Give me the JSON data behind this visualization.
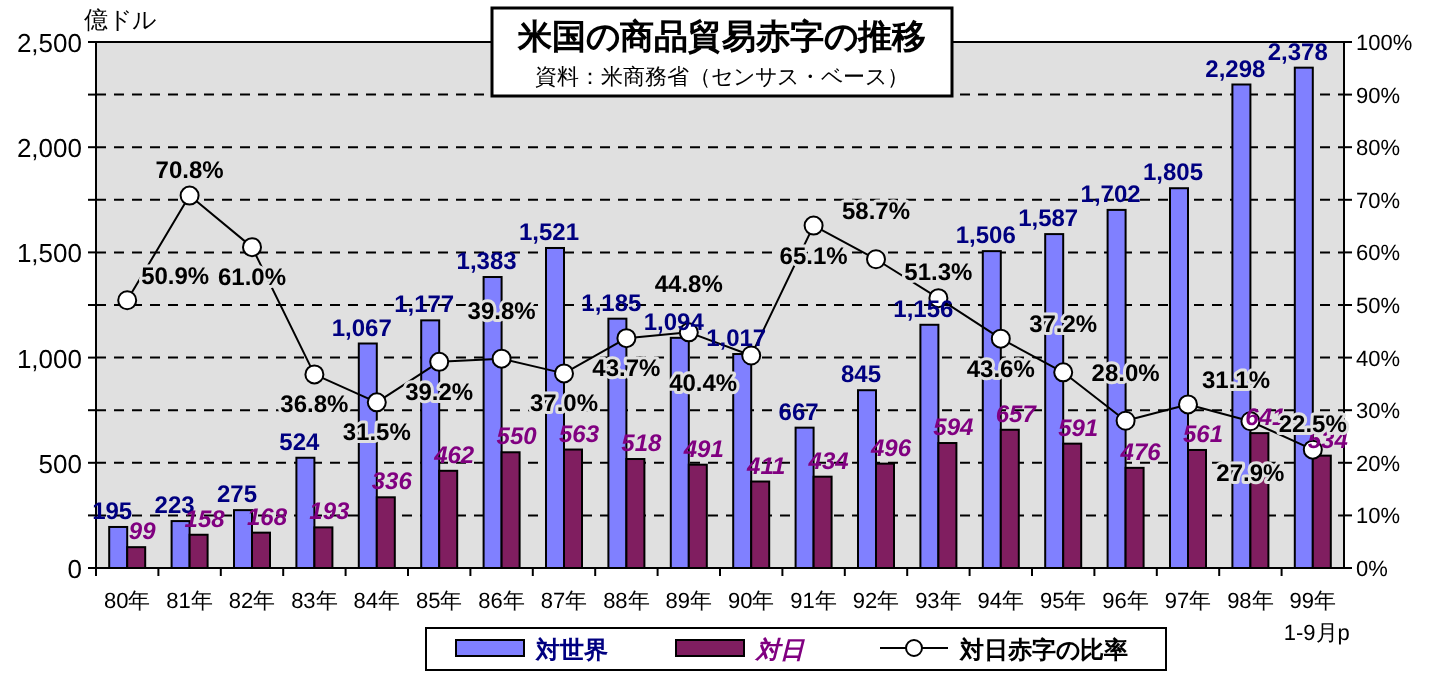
{
  "chart_data": {
    "type": "bar",
    "title": "米国の商品貿易赤字の推移",
    "subtitle": "資料：米商務省（センサス・ベース）",
    "ylabel": "億ドル",
    "categories": [
      "80年",
      "81年",
      "82年",
      "83年",
      "84年",
      "85年",
      "86年",
      "87年",
      "88年",
      "89年",
      "90年",
      "91年",
      "92年",
      "93年",
      "94年",
      "95年",
      "96年",
      "97年",
      "98年",
      "99年 1-9月p"
    ],
    "series": [
      {
        "name": "対世界",
        "color": "#8080ff",
        "values": [
          195,
          223,
          275,
          524,
          1067,
          1177,
          1383,
          1521,
          1185,
          1094,
          1017,
          667,
          845,
          1156,
          1506,
          1587,
          1702,
          1805,
          2298,
          2378
        ],
        "value_labels": [
          "195",
          "223",
          "275",
          "524",
          "1,067",
          "1,177",
          "1,383",
          "1,521",
          "1,185",
          "1,094",
          "1,017",
          "667",
          "845",
          "1,156",
          "1,506",
          "1,587",
          "1,702",
          "1,805",
          "2,298",
          "2,378"
        ]
      },
      {
        "name": "対日",
        "color": "#801e60",
        "values": [
          99,
          158,
          168,
          193,
          336,
          462,
          550,
          563,
          518,
          491,
          411,
          434,
          496,
          594,
          657,
          591,
          476,
          561,
          641,
          534
        ],
        "value_labels": [
          "99",
          "158",
          "168",
          "193",
          "336",
          "462",
          "550",
          "563",
          "518",
          "491",
          "411",
          "434",
          "496",
          "594",
          "657",
          "591",
          "476",
          "561",
          "641",
          "534"
        ]
      },
      {
        "name": "対日赤字の比率",
        "type": "line",
        "axis": "y2",
        "color": "#000000",
        "marker": "circle",
        "values": [
          50.9,
          70.8,
          61.0,
          36.8,
          31.5,
          39.2,
          39.8,
          37.0,
          43.7,
          44.8,
          40.4,
          65.1,
          58.7,
          51.3,
          43.6,
          37.2,
          28.0,
          31.1,
          27.9,
          22.5
        ],
        "value_labels": [
          "50.9%",
          "70.8%",
          "61.0%",
          "36.8%",
          "31.5%",
          "39.2%",
          "39.8%",
          "37.0%",
          "43.7%",
          "44.8%",
          "40.4%",
          "65.1%",
          "58.7%",
          "51.3%",
          "43.6%",
          "37.2%",
          "28.0%",
          "31.1%",
          "27.9%",
          "22.5%"
        ]
      }
    ],
    "ylim": [
      0,
      2500
    ],
    "yticks": [
      0,
      {
        "value": 250,
        "label": null
      },
      {
        "value": 500,
        "label": "500"
      },
      {
        "value": 750,
        "label": null
      },
      {
        "value": 1000,
        "label": "1,000"
      },
      {
        "value": 1250,
        "label": null
      },
      {
        "value": 1500,
        "label": "1,500"
      },
      {
        "value": 1750,
        "label": null
      },
      {
        "value": 2000,
        "label": "2,000"
      },
      {
        "value": 2250,
        "label": null
      },
      {
        "value": 2500,
        "label": "2,500"
      }
    ],
    "y2lim": [
      0,
      100
    ],
    "y2ticks": [
      {
        "value": 0,
        "label": "0%"
      },
      {
        "value": 10,
        "label": "10%"
      },
      {
        "value": 20,
        "label": "20%"
      },
      {
        "value": 30,
        "label": "30%"
      },
      {
        "value": 40,
        "label": "40%"
      },
      {
        "value": 50,
        "label": "50%"
      },
      {
        "value": 60,
        "label": "60%"
      },
      {
        "value": 70,
        "label": "70%"
      },
      {
        "value": 80,
        "label": "80%"
      },
      {
        "value": 90,
        "label": "90%"
      },
      {
        "value": 100,
        "label": "100%"
      }
    ],
    "grid": "y",
    "legend": "bottom"
  }
}
